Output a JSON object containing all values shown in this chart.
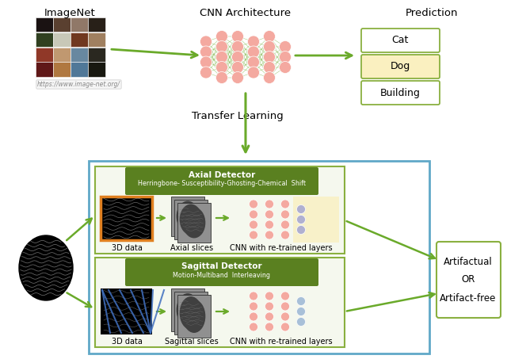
{
  "fig_width": 6.4,
  "fig_height": 4.58,
  "dpi": 100,
  "bg_color": "#ffffff",
  "green_arrow": "#6aaa2a",
  "node_color_pink": "#f4a9a0",
  "node_color_purple": "#b0b0d0",
  "node_color_blue": "#a8c0d8",
  "green_box_dark": "#5a8020",
  "light_green_border": "#8ab040",
  "blue_border": "#60a8c8",
  "yellow_fill": "#faf0c0",
  "orange_border": "#e08020",
  "imagenet_label": "ImageNet",
  "cnn_label": "CNN Architecture",
  "prediction_label": "Prediction",
  "transfer_label": "Transfer Learning",
  "url_label": "https://www.image-net.org/",
  "cat_label": "Cat",
  "dog_label": "Dog",
  "building_label": "Building",
  "axial_title": "Axial Detector",
  "axial_subtitle": "Herringbone- Susceptibility-Ghosting-Chemical  Shift",
  "sagittal_title": "Sagittal Detector",
  "sagittal_subtitle": "Motion-Multiband  Interleaving",
  "data3d_label": "3D data",
  "axial_slices_label": "Axial slices",
  "sagittal_slices_label": "Sagittal slices",
  "cnn_retrained_label": "CNN with re-trained layers",
  "artifactual_label": "Artifactual\nOR\nArtifact-free",
  "imagenet_grid": [
    [
      "#1a1212",
      "#5a4030",
      "#907868",
      "#282018"
    ],
    [
      "#304020",
      "#c8c8b8",
      "#703820",
      "#a08060"
    ],
    [
      "#903828",
      "#c09870",
      "#6888a0",
      "#2a2820"
    ],
    [
      "#601818",
      "#b07840",
      "#507898",
      "#181810"
    ]
  ]
}
